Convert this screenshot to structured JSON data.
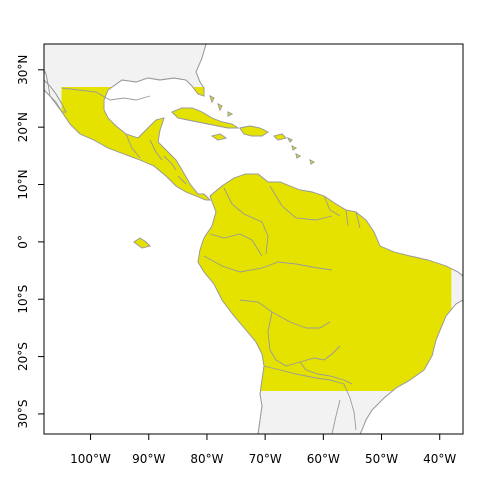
{
  "map": {
    "colors": {
      "background_land": "#f2f2f2",
      "highlight": "#e5e200",
      "border": "#9a9a9a",
      "frame": "#000000",
      "sea": "#ffffff"
    },
    "extent": {
      "lon": [
        -108,
        -36
      ],
      "lat": [
        -33.5,
        34.5
      ]
    },
    "highlight_box": {
      "lon": [
        -105,
        -38
      ],
      "lat": [
        -26,
        27
      ]
    },
    "x_ticks": [
      {
        "value": -100,
        "label": "100°W"
      },
      {
        "value": -90,
        "label": "90°W"
      },
      {
        "value": -80,
        "label": "80°W"
      },
      {
        "value": -70,
        "label": "70°W"
      },
      {
        "value": -60,
        "label": "60°W"
      },
      {
        "value": -50,
        "label": "50°W"
      },
      {
        "value": -40,
        "label": "40°W"
      }
    ],
    "y_ticks": [
      {
        "value": 30,
        "label": "30°N"
      },
      {
        "value": 20,
        "label": "20°N"
      },
      {
        "value": 10,
        "label": "10°N"
      },
      {
        "value": 0,
        "label": "0°"
      },
      {
        "value": -10,
        "label": "10°S"
      },
      {
        "value": -20,
        "label": "20°S"
      },
      {
        "value": -30,
        "label": "30°S"
      }
    ]
  }
}
